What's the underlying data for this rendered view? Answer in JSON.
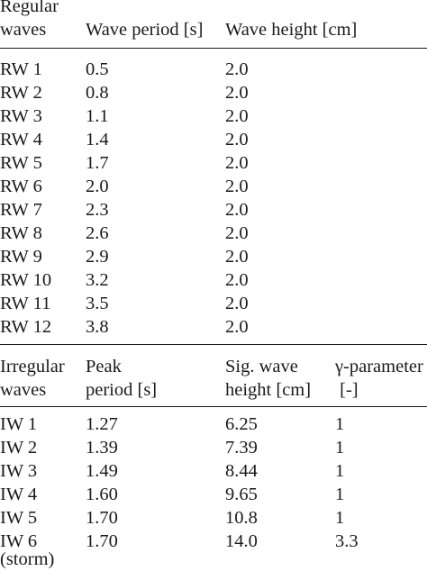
{
  "regular": {
    "header": {
      "col1_line1": "Regular",
      "col1_line2": "waves",
      "col2": "Wave period [s]",
      "col3": "Wave height [cm]"
    },
    "rows": [
      {
        "id": "RW 1",
        "period": "0.5",
        "height": "2.0"
      },
      {
        "id": "RW 2",
        "period": "0.8",
        "height": "2.0"
      },
      {
        "id": "RW 3",
        "period": "1.1",
        "height": "2.0"
      },
      {
        "id": "RW 4",
        "period": "1.4",
        "height": "2.0"
      },
      {
        "id": "RW 5",
        "period": "1.7",
        "height": "2.0"
      },
      {
        "id": "RW 6",
        "period": "2.0",
        "height": "2.0"
      },
      {
        "id": "RW 7",
        "period": "2.3",
        "height": "2.0"
      },
      {
        "id": "RW 8",
        "period": "2.6",
        "height": "2.0"
      },
      {
        "id": "RW 9",
        "period": "2.9",
        "height": "2.0"
      },
      {
        "id": "RW 10",
        "period": "3.2",
        "height": "2.0"
      },
      {
        "id": "RW 11",
        "period": "3.5",
        "height": "2.0"
      },
      {
        "id": "RW 12",
        "period": "3.8",
        "height": "2.0"
      }
    ]
  },
  "irregular": {
    "header": {
      "col1_line1": "Irregular",
      "col1_line2": "waves",
      "col2_line1": "Peak",
      "col2_line2": "period [s]",
      "col3_line1": "Sig. wave",
      "col3_line2": "height [cm]",
      "col4_line1": "γ-parameter",
      "col4_line2": " [-]"
    },
    "rows": [
      {
        "id": "IW 1",
        "period": "1.27",
        "height": "6.25",
        "gamma": "1"
      },
      {
        "id": "IW 2",
        "period": "1.39",
        "height": "7.39",
        "gamma": "1"
      },
      {
        "id": "IW 3",
        "period": "1.49",
        "height": "8.44",
        "gamma": "1"
      },
      {
        "id": "IW 4",
        "period": "1.60",
        "height": "9.65",
        "gamma": "1"
      },
      {
        "id": "IW 5",
        "period": "1.70",
        "height": "10.8",
        "gamma": "1"
      },
      {
        "id": "IW 6",
        "id_line2": "(storm)",
        "period": "1.70",
        "height": "14.0",
        "gamma": "3.3"
      }
    ]
  }
}
